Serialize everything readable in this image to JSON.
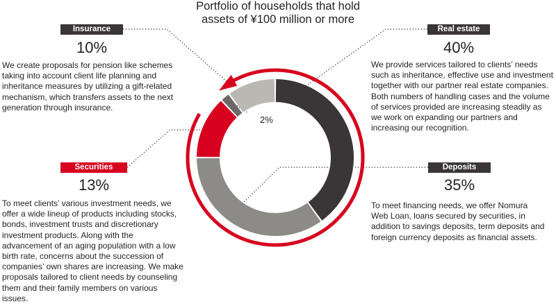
{
  "chart_data": {
    "type": "pie",
    "title": "Portfolio of households that hold assets of ¥100 million or more",
    "slices": [
      {
        "label": "Real estate",
        "value": 40,
        "display": "40%",
        "color": "#3a3536"
      },
      {
        "label": "Deposits",
        "value": 35,
        "display": "35%",
        "color": "#8d8b88"
      },
      {
        "label": "Securities",
        "value": 13,
        "display": "13%",
        "color": "#d7001e"
      },
      {
        "label": "",
        "value": 2,
        "display": "2%",
        "color": "#6b6868"
      },
      {
        "label": "Insurance",
        "value": 10,
        "display": "10%",
        "color": "#b9b8b2"
      }
    ]
  },
  "title_line1": "Portfolio of households that hold",
  "title_line2": "assets of ¥100 million or more",
  "sections": {
    "insurance": {
      "label": "Insurance",
      "percent": "10%",
      "text": "We create proposals for pension like schemes taking into account client life planning and inheritance measures by utilizing a gift-related mechanism, which transfers assets to the next generation through insurance."
    },
    "real_estate": {
      "label": "Real estate",
      "percent": "40%",
      "text": "We provide services tailored to clients’ needs such as inheritance, effective use and investment together with our partner real estate companies. Both numbers of handling cases and the volume of services provided are increasing steadily as we work on  expanding our partners and increasing our recognition."
    },
    "securities": {
      "label": "Securities",
      "percent": "13%",
      "text": "To meet clients’ various investment needs, we offer a wide lineup of products including stocks, bonds, investment trusts and discretionary investment products. Along with the advancement of an aging population with a low birth rate, concerns about the succession of companies’ own shares are increasing. We make proposals tailored to client needs by counseling them and their family members on various issues."
    },
    "deposits": {
      "label": "Deposits",
      "percent": "35%",
      "text": "To meet financing needs, we offer Nomura Web Loan, loans secured by securities, in addition to savings deposits, term deposits and foreign currency deposits as financial assets."
    },
    "other_label": "2%"
  },
  "colors": {
    "accent_red": "#d7001e",
    "dark_tag": "#3a3536",
    "outer_ring": "#d7001e"
  }
}
